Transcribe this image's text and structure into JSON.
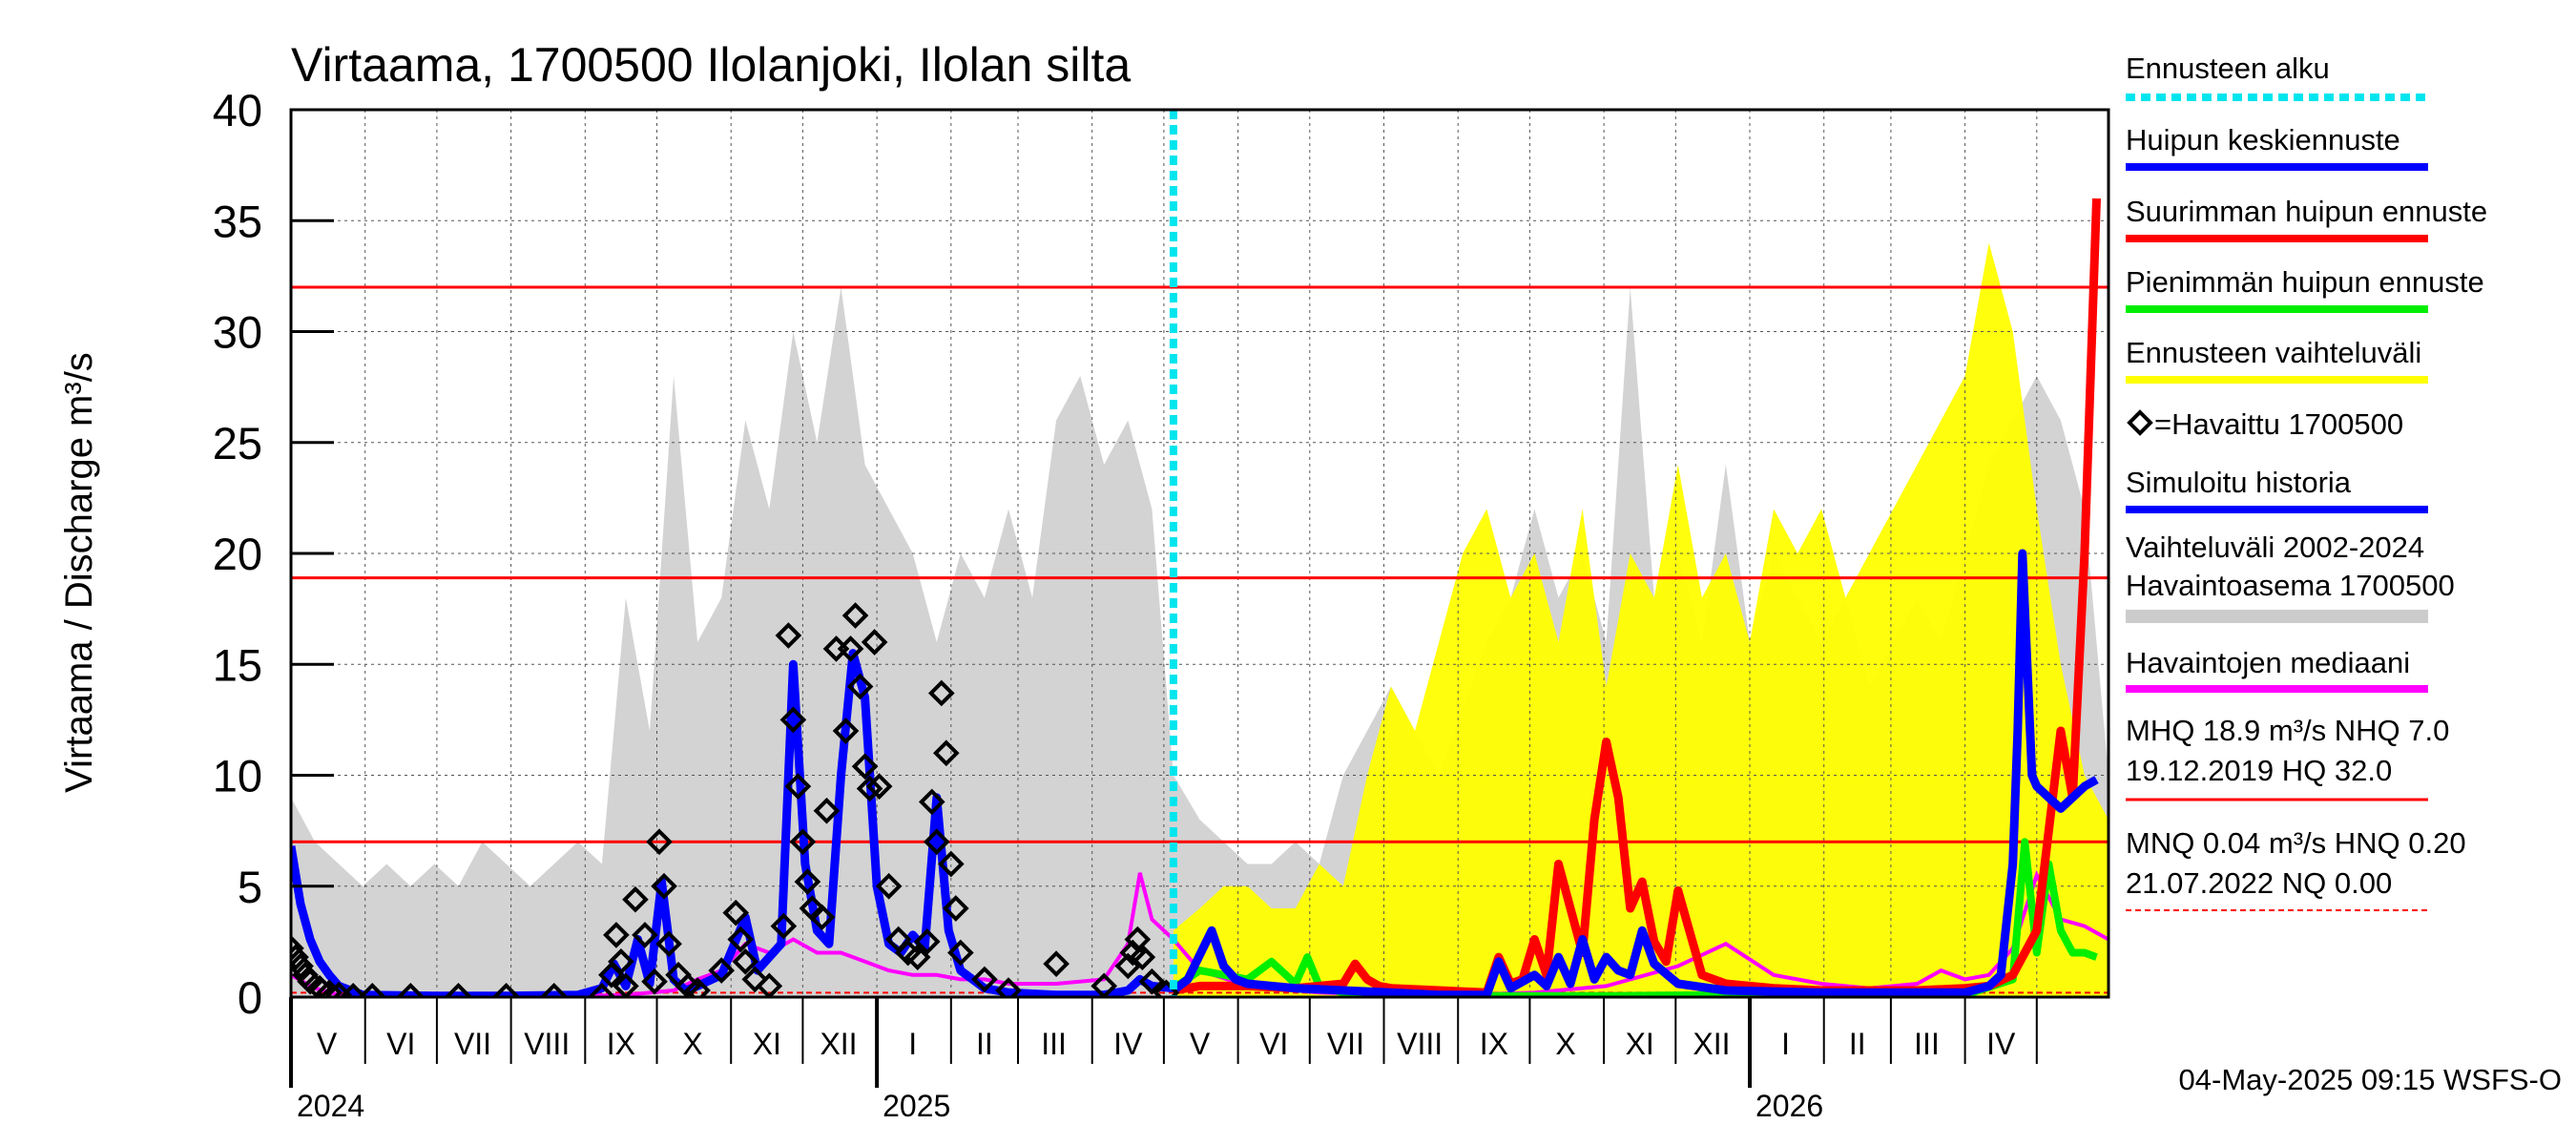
{
  "chart_data": {
    "type": "line",
    "title": "Virtaama, 1700500 Ilolanjoki, Ilolan silta",
    "ylabel": "Virtaama / Discharge    m³/s",
    "ylim": [
      0,
      40
    ],
    "yticks": [
      "0",
      "5",
      "10",
      "15",
      "20",
      "25",
      "30",
      "35",
      "40"
    ],
    "x_range_days": [
      0,
      760
    ],
    "month_labels": [
      {
        "label": "V",
        "day": 15
      },
      {
        "label": "VI",
        "day": 46
      },
      {
        "label": "VII",
        "day": 76
      },
      {
        "label": "VIII",
        "day": 107
      },
      {
        "label": "IX",
        "day": 138
      },
      {
        "label": "X",
        "day": 168
      },
      {
        "label": "XI",
        "day": 199
      },
      {
        "label": "XII",
        "day": 229
      },
      {
        "label": "I",
        "day": 260
      },
      {
        "label": "II",
        "day": 290
      },
      {
        "label": "III",
        "day": 319
      },
      {
        "label": "IV",
        "day": 350
      },
      {
        "label": "V",
        "day": 380
      },
      {
        "label": "VI",
        "day": 411
      },
      {
        "label": "VII",
        "day": 441
      },
      {
        "label": "VIII",
        "day": 472
      },
      {
        "label": "IX",
        "day": 503
      },
      {
        "label": "X",
        "day": 533
      },
      {
        "label": "XI",
        "day": 564
      },
      {
        "label": "XII",
        "day": 594
      },
      {
        "label": "I",
        "day": 625
      },
      {
        "label": "II",
        "day": 655
      },
      {
        "label": "III",
        "day": 684
      },
      {
        "label": "IV",
        "day": 715
      }
    ],
    "month_boundaries": [
      0,
      31,
      61,
      92,
      123,
      153,
      184,
      214,
      245,
      276,
      304,
      335,
      365,
      396,
      426,
      457,
      488,
      518,
      549,
      579,
      610,
      641,
      669,
      700,
      730
    ],
    "year_labels": [
      {
        "label": "2024",
        "day": 0
      },
      {
        "label": "2025",
        "day": 245
      },
      {
        "label": "2026",
        "day": 610
      }
    ],
    "forecast_start_day": 369,
    "reference_lines": [
      {
        "name": "HQ",
        "value": 32.0
      },
      {
        "name": "MHQ",
        "value": 18.9
      },
      {
        "name": "NHQ",
        "value": 7.0
      },
      {
        "name": "HNQ",
        "value": 0.2
      }
    ],
    "variation_band_days": [
      0,
      10,
      20,
      30,
      40,
      50,
      60,
      70,
      80,
      90,
      100,
      110,
      120,
      130,
      140,
      150,
      160,
      170,
      180,
      190,
      200,
      210,
      220,
      230,
      240,
      250,
      260,
      270,
      280,
      290,
      300,
      310,
      320,
      330,
      340,
      350,
      360,
      369,
      380,
      390,
      400,
      410,
      420,
      430,
      440,
      450,
      460,
      470,
      480,
      490,
      500,
      510,
      520,
      530,
      540,
      550,
      560,
      570,
      580,
      590,
      600,
      610,
      620,
      630,
      640,
      650,
      660,
      670,
      680,
      690,
      700,
      710,
      720,
      730,
      740,
      750,
      760
    ],
    "variation_band_max": [
      9,
      7,
      6,
      5,
      6,
      5,
      6,
      5,
      7,
      6,
      5,
      6,
      7,
      6,
      18,
      12,
      28,
      16,
      18,
      26,
      22,
      30,
      25,
      32,
      24,
      22,
      20,
      16,
      20,
      18,
      22,
      18,
      26,
      28,
      24,
      26,
      22,
      10,
      8,
      7,
      6,
      6,
      7,
      6,
      10,
      12,
      14,
      12,
      10,
      13,
      16,
      18,
      22,
      18,
      20,
      16,
      32,
      18,
      20,
      16,
      24,
      16,
      20,
      18,
      16,
      18,
      14,
      16,
      18,
      16,
      20,
      24,
      26,
      28,
      26,
      22,
      10
    ],
    "forecast_band_max": [
      3,
      4,
      5,
      5,
      4,
      4,
      6,
      5,
      10,
      14,
      12,
      16,
      20,
      22,
      18,
      20,
      16,
      22,
      14,
      20,
      18,
      24,
      18,
      20,
      16,
      22,
      20,
      22,
      18,
      20,
      28,
      34,
      30,
      22,
      15,
      10,
      8,
      6,
      5
    ],
    "forecast_band_days": [
      369,
      380,
      390,
      400,
      410,
      420,
      430,
      440,
      450,
      460,
      470,
      480,
      490,
      500,
      510,
      520,
      530,
      540,
      550,
      560,
      570,
      580,
      590,
      600,
      610,
      620,
      630,
      640,
      650,
      660,
      700,
      710,
      720,
      730,
      740,
      750,
      760,
      760,
      760
    ],
    "simulated_history": {
      "days": [
        0,
        4,
        8,
        12,
        16,
        20,
        30,
        60,
        90,
        120,
        130,
        135,
        140,
        145,
        150,
        155,
        160,
        165,
        170,
        180,
        190,
        195,
        200,
        205,
        210,
        215,
        220,
        225,
        230,
        235,
        240,
        245,
        250,
        255,
        260,
        265,
        270,
        275,
        280,
        290,
        300,
        320,
        340,
        350,
        355,
        360,
        369
      ],
      "values": [
        6.8,
        4.2,
        2.6,
        1.6,
        1.0,
        0.5,
        0.1,
        0.05,
        0.05,
        0.1,
        0.4,
        1.5,
        0.5,
        2.6,
        0.6,
        5.2,
        0.8,
        0.3,
        0.5,
        1.0,
        3.6,
        1.2,
        1.8,
        2.4,
        15.0,
        6.0,
        3.0,
        2.4,
        10.0,
        15.5,
        13.5,
        5.0,
        2.4,
        2.0,
        2.8,
        2.2,
        9.0,
        3.0,
        1.2,
        0.4,
        0.2,
        0.1,
        0.1,
        0.3,
        0.8,
        0.5,
        0.4
      ]
    },
    "observed": {
      "days": [
        0,
        2,
        4,
        6,
        8,
        12,
        16,
        20,
        26,
        34,
        50,
        70,
        90,
        110,
        130,
        134,
        136,
        138,
        140,
        144,
        148,
        152,
        154,
        156,
        158,
        162,
        166,
        170,
        180,
        186,
        188,
        190,
        194,
        200,
        206,
        208,
        210,
        212,
        214,
        216,
        218,
        222,
        224,
        228,
        232,
        234,
        236,
        238,
        240,
        242,
        244,
        246,
        250,
        254,
        258,
        262,
        266,
        268,
        270,
        272,
        274,
        276,
        278,
        280,
        290,
        300,
        320,
        340,
        350,
        352,
        354,
        356,
        360,
        366
      ],
      "values": [
        2.2,
        1.8,
        1.4,
        1.0,
        0.7,
        0.4,
        0.2,
        0.1,
        0.05,
        0.05,
        0.05,
        0.05,
        0.05,
        0.05,
        0.05,
        1.0,
        2.8,
        1.6,
        0.5,
        4.4,
        2.8,
        0.7,
        7.0,
        5.0,
        2.4,
        1.0,
        0.5,
        0.3,
        1.2,
        3.8,
        2.6,
        1.6,
        0.8,
        0.5,
        3.2,
        16.3,
        12.5,
        9.5,
        7.0,
        5.2,
        4.0,
        3.6,
        8.4,
        15.7,
        12.0,
        15.7,
        17.2,
        14.0,
        10.4,
        9.4,
        16.0,
        9.5,
        5.0,
        2.6,
        2.0,
        1.8,
        2.5,
        8.8,
        7.0,
        13.7,
        11.0,
        6.0,
        4.0,
        2.0,
        0.8,
        0.3,
        1.5,
        0.5,
        1.4,
        2.0,
        2.6,
        1.8,
        0.7,
        0.2
      ]
    },
    "median": {
      "days": [
        0,
        10,
        20,
        30,
        60,
        90,
        120,
        140,
        160,
        170,
        180,
        190,
        200,
        210,
        220,
        230,
        240,
        250,
        260,
        270,
        280,
        290,
        300,
        320,
        340,
        350,
        355,
        360,
        369,
        380,
        400,
        430,
        460,
        490,
        520,
        550,
        580,
        600,
        620,
        640,
        660,
        680,
        690,
        700,
        710,
        720,
        730,
        740,
        750,
        760
      ],
      "values": [
        1.0,
        0.4,
        0.1,
        0.05,
        0.05,
        0.05,
        0.05,
        0.1,
        0.3,
        0.8,
        1.2,
        2.4,
        2.0,
        2.6,
        2.0,
        2.0,
        1.6,
        1.2,
        1.0,
        1.0,
        0.8,
        0.8,
        0.6,
        0.6,
        0.8,
        2.4,
        5.6,
        3.5,
        2.6,
        1.2,
        0.5,
        0.2,
        0.1,
        0.1,
        0.2,
        0.5,
        1.4,
        2.4,
        1.0,
        0.6,
        0.4,
        0.6,
        1.2,
        0.8,
        1.0,
        2.2,
        5.5,
        3.5,
        3.2,
        2.6
      ]
    },
    "mean_forecast": {
      "days": [
        369,
        375,
        385,
        390,
        395,
        400,
        420,
        440,
        460,
        480,
        500,
        505,
        510,
        520,
        525,
        530,
        535,
        540,
        545,
        550,
        555,
        560,
        565,
        570,
        580,
        600,
        640,
        680,
        700,
        710,
        715,
        720,
        722,
        724,
        726,
        728,
        730,
        735,
        740,
        745,
        750,
        755
      ],
      "values": [
        0.3,
        0.8,
        3.0,
        1.4,
        0.8,
        0.6,
        0.4,
        0.3,
        0.2,
        0.1,
        0.1,
        1.6,
        0.4,
        1.0,
        0.5,
        1.8,
        0.6,
        2.6,
        0.8,
        1.8,
        1.2,
        1.0,
        3.0,
        1.5,
        0.6,
        0.3,
        0.2,
        0.2,
        0.2,
        0.5,
        1.0,
        6.0,
        12.0,
        20.0,
        15.0,
        10.0,
        9.5,
        9.0,
        8.5,
        9.0,
        9.5,
        9.8
      ]
    },
    "max_forecast": {
      "days": [
        369,
        380,
        400,
        420,
        440,
        445,
        450,
        455,
        460,
        480,
        500,
        505,
        510,
        515,
        520,
        525,
        530,
        535,
        540,
        545,
        550,
        555,
        560,
        565,
        570,
        575,
        580,
        590,
        600,
        620,
        640,
        660,
        680,
        700,
        710,
        720,
        730,
        740,
        745,
        750,
        755
      ],
      "values": [
        0.3,
        0.5,
        0.5,
        0.4,
        0.6,
        1.5,
        0.8,
        0.5,
        0.4,
        0.3,
        0.2,
        1.8,
        0.6,
        0.8,
        2.6,
        1.0,
        6.0,
        4.0,
        2.0,
        8.0,
        11.5,
        9.0,
        4.0,
        5.2,
        2.5,
        1.6,
        4.8,
        1.0,
        0.6,
        0.4,
        0.3,
        0.3,
        0.3,
        0.4,
        0.5,
        1.0,
        3.0,
        12.0,
        9.0,
        20.0,
        36.0
      ]
    },
    "min_forecast": {
      "days": [
        369,
        380,
        400,
        410,
        420,
        425,
        430,
        440,
        450,
        500,
        550,
        600,
        650,
        700,
        720,
        725,
        730,
        735,
        740,
        745,
        750,
        755
      ],
      "values": [
        0.4,
        1.2,
        0.8,
        1.6,
        0.6,
        1.8,
        0.5,
        0.2,
        0.1,
        0.05,
        0.05,
        0.1,
        0.1,
        0.1,
        0.8,
        7.0,
        2.0,
        6.0,
        3.0,
        2.0,
        2.0,
        1.8
      ]
    },
    "legend": [
      {
        "label": "Ennusteen alku",
        "color": "#00e5ee",
        "style": "dotted"
      },
      {
        "label": "Huipun keskiennuste",
        "color": "#0000ff",
        "style": "solid"
      },
      {
        "label": "Suurimman huipun ennuste",
        "color": "#ff0000",
        "style": "solid"
      },
      {
        "label": "Pienimmän huipun ennuste",
        "color": "#00ee00",
        "style": "solid"
      },
      {
        "label": "Ennusteen vaihteluväli",
        "color": "#ffff00",
        "style": "solid"
      },
      {
        "label": "=Havaittu 1700500",
        "color": "#000000",
        "style": "marker"
      },
      {
        "label": "Simuloitu historia",
        "color": "#0000ff",
        "style": "solid"
      },
      {
        "label": "Vaihteluväli 2002-2024",
        "color": "#cccccc",
        "style": "none"
      },
      {
        "label": " Havaintoasema 1700500",
        "color": "#cccccc",
        "style": "solid"
      },
      {
        "label": "Havaintojen mediaani",
        "color": "#ff00ff",
        "style": "solid"
      }
    ],
    "stats": {
      "line1": "MHQ 18.9 m³/s NHQ  7.0",
      "line2": "19.12.2019 HQ 32.0",
      "line3": "MNQ 0.04 m³/s HNQ 0.20",
      "line4": "21.07.2022 NQ 0.00"
    },
    "footer": "04-May-2025 09:15 WSFS-O"
  },
  "colors": {
    "variation": "#d3d3d3",
    "forecast_band": "#ffff00",
    "reference": "#ff0000",
    "forecast_start": "#00e5ee",
    "mean": "#0000ff",
    "max": "#ff0000",
    "min": "#00ee00",
    "median": "#ff00ff",
    "history": "#0000ff",
    "observed": "#000000"
  }
}
